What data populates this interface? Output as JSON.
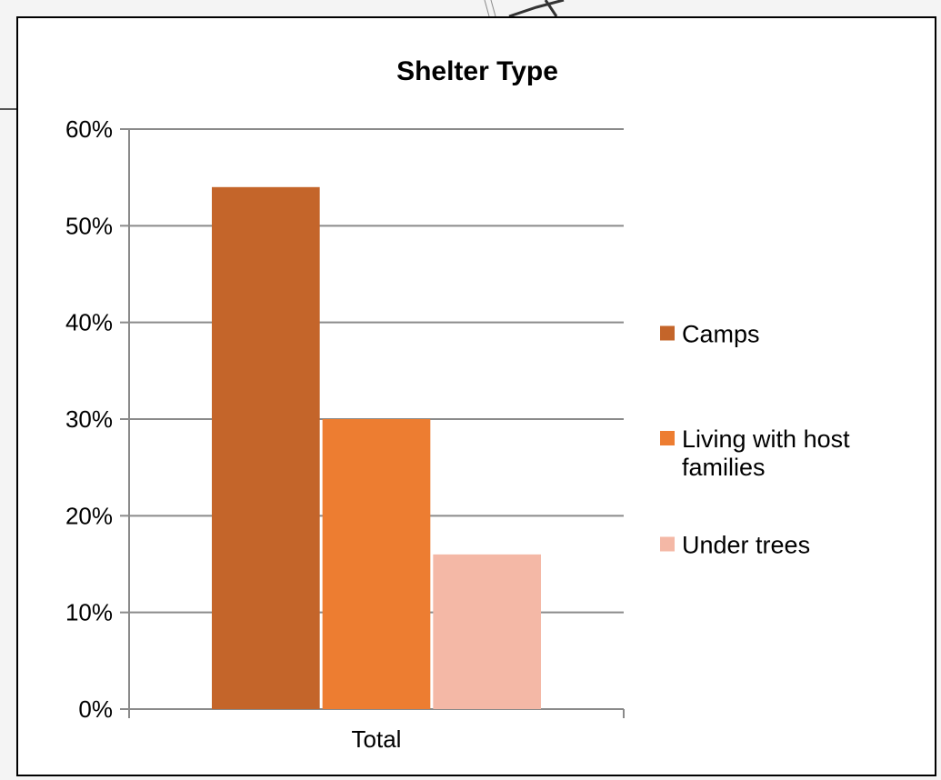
{
  "chart_data": {
    "type": "bar",
    "title": "Shelter Type",
    "xlabel": "",
    "ylabel": "",
    "categories": [
      "Total"
    ],
    "series": [
      {
        "name": "Camps",
        "values": [
          54
        ],
        "color": "#c4652a"
      },
      {
        "name": "Living with host families",
        "legend_lines": [
          "Living with host",
          "families"
        ],
        "values": [
          30
        ],
        "color": "#ed7d31"
      },
      {
        "name": "Under trees",
        "values": [
          16
        ],
        "color": "#f4b8a6"
      }
    ],
    "ylim": [
      0,
      60
    ],
    "ytick_values": [
      0,
      10,
      20,
      30,
      40,
      50,
      60
    ],
    "ytick_labels": [
      "0%",
      "10%",
      "20%",
      "30%",
      "40%",
      "50%",
      "60%"
    ],
    "grid": true,
    "legend_position": "right"
  }
}
